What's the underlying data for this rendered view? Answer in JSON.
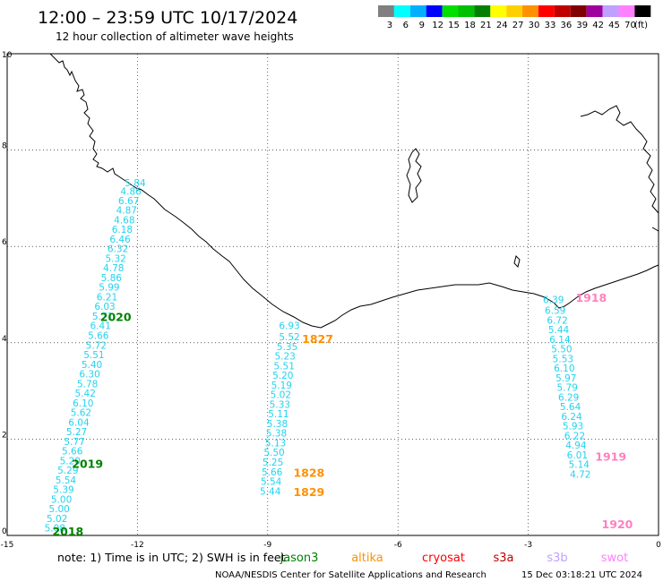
{
  "header": {
    "title": "12:00 – 23:59 UTC 10/17/2024",
    "subtitle": "12 hour collection of altimeter wave heights"
  },
  "color_scale": {
    "unit": "(ft)",
    "levels": [
      {
        "label": "3",
        "color": "#808080"
      },
      {
        "label": "6",
        "color": "#00ffff"
      },
      {
        "label": "9",
        "color": "#00b0ff"
      },
      {
        "label": "12",
        "color": "#0000ff"
      },
      {
        "label": "15",
        "color": "#00e000"
      },
      {
        "label": "18",
        "color": "#00c000"
      },
      {
        "label": "21",
        "color": "#008000"
      },
      {
        "label": "24",
        "color": "#ffff00"
      },
      {
        "label": "27",
        "color": "#ffd000"
      },
      {
        "label": "30",
        "color": "#ff9000"
      },
      {
        "label": "33",
        "color": "#ff0000"
      },
      {
        "label": "36",
        "color": "#c00000"
      },
      {
        "label": "39",
        "color": "#800000"
      },
      {
        "label": "42",
        "color": "#a000a0"
      },
      {
        "label": "45",
        "color": "#c0a0ff"
      },
      {
        "label": "70",
        "color": "#ff80ff"
      },
      {
        "label": "",
        "color": "#000000"
      }
    ]
  },
  "axes": {
    "x_ticks": [
      "-15",
      "-12",
      "-9",
      "-6",
      "-3",
      "0"
    ],
    "y_ticks": [
      "0",
      "2",
      "4",
      "6",
      "8",
      "10"
    ],
    "xlim": [
      -15,
      0
    ],
    "ylim": [
      0,
      10
    ],
    "grid": "dotted"
  },
  "tracks": [
    {
      "id": "track-1",
      "color": "#22d3ee",
      "points": [
        {
          "lon": -12.05,
          "lat": 7.25,
          "v": "5.84"
        },
        {
          "lon": -12.15,
          "lat": 7.07,
          "v": "4.86"
        },
        {
          "lon": -12.2,
          "lat": 6.88,
          "v": "6.67"
        },
        {
          "lon": -12.25,
          "lat": 6.68,
          "v": "4.87"
        },
        {
          "lon": -12.3,
          "lat": 6.48,
          "v": "4.68"
        },
        {
          "lon": -12.35,
          "lat": 6.28,
          "v": "6.18"
        },
        {
          "lon": -12.4,
          "lat": 6.08,
          "v": "6.46"
        },
        {
          "lon": -12.45,
          "lat": 5.88,
          "v": "6.32"
        },
        {
          "lon": -12.5,
          "lat": 5.68,
          "v": "5.32"
        },
        {
          "lon": -12.55,
          "lat": 5.48,
          "v": "4.78"
        },
        {
          "lon": -12.6,
          "lat": 5.28,
          "v": "5.86"
        },
        {
          "lon": -12.65,
          "lat": 5.08,
          "v": "5.99"
        },
        {
          "lon": -12.7,
          "lat": 4.88,
          "v": "6.21"
        },
        {
          "lon": -12.75,
          "lat": 4.68,
          "v": "6.03"
        },
        {
          "lon": -12.8,
          "lat": 4.48,
          "v": "5.71"
        },
        {
          "lon": -12.85,
          "lat": 4.28,
          "v": "6.41"
        },
        {
          "lon": -12.9,
          "lat": 4.08,
          "v": "5.66"
        },
        {
          "lon": -12.95,
          "lat": 3.88,
          "v": "5.72"
        },
        {
          "lon": -13.0,
          "lat": 3.68,
          "v": "5.51"
        },
        {
          "lon": -13.05,
          "lat": 3.48,
          "v": "5.40"
        },
        {
          "lon": -13.1,
          "lat": 3.28,
          "v": "6.30"
        },
        {
          "lon": -13.15,
          "lat": 3.08,
          "v": "5.78"
        },
        {
          "lon": -13.2,
          "lat": 2.88,
          "v": "5.42"
        },
        {
          "lon": -13.25,
          "lat": 2.68,
          "v": "6.10"
        },
        {
          "lon": -13.3,
          "lat": 2.48,
          "v": "5.62"
        },
        {
          "lon": -13.35,
          "lat": 2.28,
          "v": "6.04"
        },
        {
          "lon": -13.4,
          "lat": 2.08,
          "v": "5.27"
        },
        {
          "lon": -13.45,
          "lat": 1.88,
          "v": "5.77"
        },
        {
          "lon": -13.5,
          "lat": 1.68,
          "v": "5.66"
        },
        {
          "lon": -13.55,
          "lat": 1.48,
          "v": "5.20"
        },
        {
          "lon": -13.6,
          "lat": 1.28,
          "v": "5.29"
        },
        {
          "lon": -13.65,
          "lat": 1.08,
          "v": "5.54"
        },
        {
          "lon": -13.7,
          "lat": 0.88,
          "v": "5.39"
        },
        {
          "lon": -13.75,
          "lat": 0.68,
          "v": "5.00"
        },
        {
          "lon": -13.8,
          "lat": 0.48,
          "v": "5.00"
        },
        {
          "lon": -13.85,
          "lat": 0.28,
          "v": "5.02"
        },
        {
          "lon": -13.9,
          "lat": 0.08,
          "v": "5.08"
        }
      ],
      "pass_labels": [
        {
          "text": "2020",
          "lon": -12.5,
          "lat": 4.45,
          "color": "#008000"
        },
        {
          "text": "2019",
          "lon": -13.15,
          "lat": 1.4,
          "color": "#008000"
        },
        {
          "text": "2018",
          "lon": -13.6,
          "lat": 0.0,
          "color": "#008000"
        }
      ]
    },
    {
      "id": "track-2",
      "color": "#22d3ee",
      "points": [
        {
          "lon": -8.5,
          "lat": 4.28,
          "v": "6.93"
        },
        {
          "lon": -8.5,
          "lat": 4.05,
          "v": "5.52"
        },
        {
          "lon": -8.55,
          "lat": 3.85,
          "v": "5.35"
        },
        {
          "lon": -8.6,
          "lat": 3.65,
          "v": "5.23"
        },
        {
          "lon": -8.62,
          "lat": 3.45,
          "v": "5.51"
        },
        {
          "lon": -8.65,
          "lat": 3.25,
          "v": "5.20"
        },
        {
          "lon": -8.68,
          "lat": 3.05,
          "v": "5.19"
        },
        {
          "lon": -8.7,
          "lat": 2.85,
          "v": "5.02"
        },
        {
          "lon": -8.72,
          "lat": 2.65,
          "v": "5.33"
        },
        {
          "lon": -8.75,
          "lat": 2.45,
          "v": "5.11"
        },
        {
          "lon": -8.78,
          "lat": 2.25,
          "v": "5.38"
        },
        {
          "lon": -8.8,
          "lat": 2.05,
          "v": "5.38"
        },
        {
          "lon": -8.82,
          "lat": 1.85,
          "v": "5.13"
        },
        {
          "lon": -8.85,
          "lat": 1.65,
          "v": "5.50"
        },
        {
          "lon": -8.88,
          "lat": 1.45,
          "v": "5.25"
        },
        {
          "lon": -8.9,
          "lat": 1.25,
          "v": "5.66"
        },
        {
          "lon": -8.92,
          "lat": 1.05,
          "v": "5.54"
        },
        {
          "lon": -8.94,
          "lat": 0.85,
          "v": "5.44"
        }
      ],
      "pass_labels": [
        {
          "text": "1827",
          "lon": -7.85,
          "lat": 4.0,
          "color": "#ff9000"
        },
        {
          "text": "1828",
          "lon": -8.05,
          "lat": 1.22,
          "color": "#ff9000"
        },
        {
          "text": "1829",
          "lon": -8.05,
          "lat": 0.82,
          "color": "#ff9000"
        }
      ]
    },
    {
      "id": "track-3",
      "color": "#22d3ee",
      "points": [
        {
          "lon": -2.42,
          "lat": 4.82,
          "v": "6.39"
        },
        {
          "lon": -2.38,
          "lat": 4.6,
          "v": "6.59"
        },
        {
          "lon": -2.33,
          "lat": 4.4,
          "v": "6.72"
        },
        {
          "lon": -2.3,
          "lat": 4.2,
          "v": "5.44"
        },
        {
          "lon": -2.27,
          "lat": 4.0,
          "v": "6.14"
        },
        {
          "lon": -2.23,
          "lat": 3.8,
          "v": "5.50"
        },
        {
          "lon": -2.2,
          "lat": 3.6,
          "v": "5.53"
        },
        {
          "lon": -2.17,
          "lat": 3.4,
          "v": "6.10"
        },
        {
          "lon": -2.13,
          "lat": 3.2,
          "v": "5.97"
        },
        {
          "lon": -2.1,
          "lat": 3.0,
          "v": "5.79"
        },
        {
          "lon": -2.07,
          "lat": 2.8,
          "v": "6.29"
        },
        {
          "lon": -2.03,
          "lat": 2.6,
          "v": "5.64"
        },
        {
          "lon": -2.0,
          "lat": 2.4,
          "v": "6.24"
        },
        {
          "lon": -1.97,
          "lat": 2.2,
          "v": "5.93"
        },
        {
          "lon": -1.93,
          "lat": 2.0,
          "v": "6.22"
        },
        {
          "lon": -1.9,
          "lat": 1.8,
          "v": "4.94"
        },
        {
          "lon": -1.87,
          "lat": 1.6,
          "v": "6.01"
        },
        {
          "lon": -1.83,
          "lat": 1.4,
          "v": "5.14"
        },
        {
          "lon": -1.8,
          "lat": 1.2,
          "v": "4.72"
        }
      ],
      "pass_labels": [
        {
          "text": "1918",
          "lon": -1.55,
          "lat": 4.85,
          "color": "#ff80c0"
        },
        {
          "text": "1919",
          "lon": -1.1,
          "lat": 1.55,
          "color": "#ff80c0"
        },
        {
          "text": "1920",
          "lon": -0.95,
          "lat": 0.15,
          "color": "#ff80c0"
        }
      ]
    }
  ],
  "footer": {
    "note": "note:  1) Time is in UTC;  2) SWH is in feet",
    "satellites": [
      {
        "name": "jason3",
        "color": "#008000"
      },
      {
        "name": "altika",
        "color": "#ff9000"
      },
      {
        "name": "cryosat",
        "color": "#ff0000"
      },
      {
        "name": "s3a",
        "color": "#c00000"
      },
      {
        "name": "s3b",
        "color": "#c0a0ff"
      },
      {
        "name": "swot",
        "color": "#ff80ff"
      }
    ],
    "credit": "NOAA/NESDIS Center for Satellite Applications and Research",
    "timestamp": "15 Dec 03:18:21 UTC 2024"
  }
}
